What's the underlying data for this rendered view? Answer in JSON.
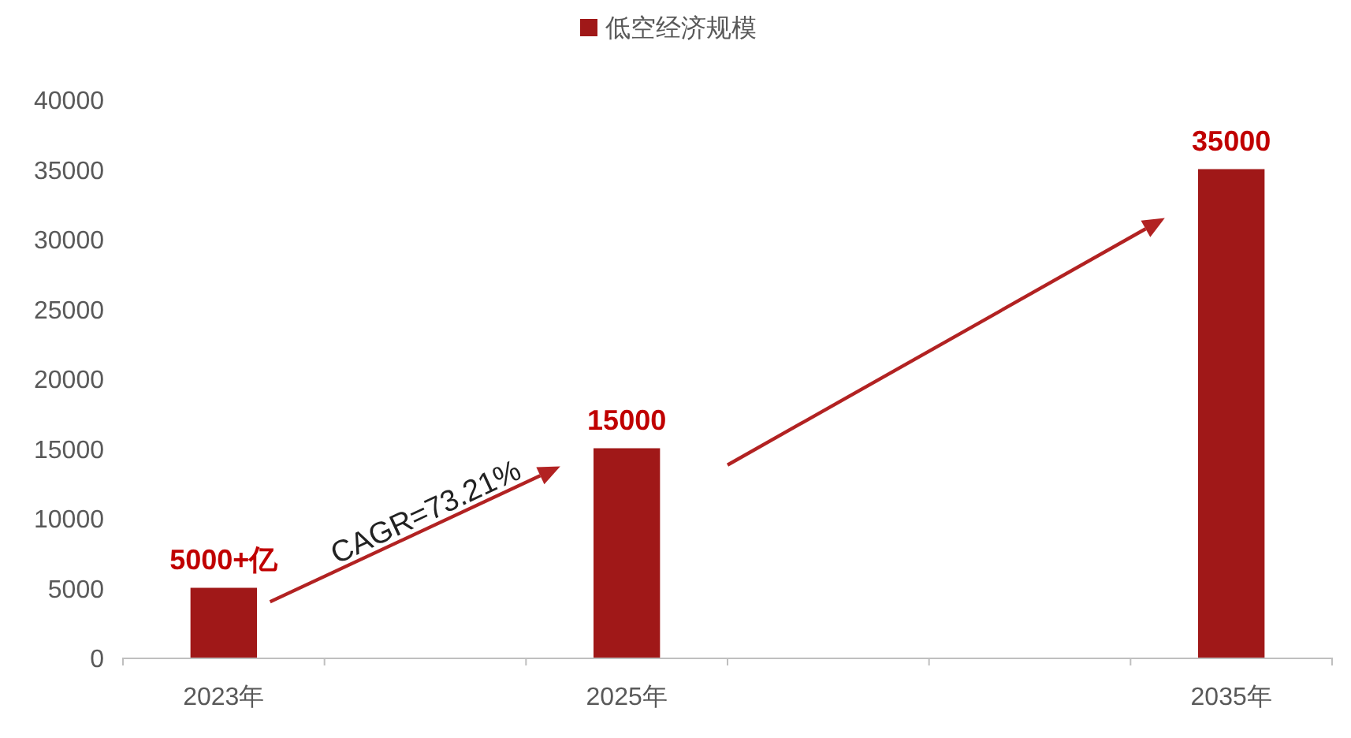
{
  "chart_data": {
    "type": "bar",
    "categories": [
      "2023年",
      null,
      "2025年",
      null,
      null,
      "2035年"
    ],
    "series": [
      {
        "name": "低空经济规模",
        "color": "#a01818",
        "values": [
          5000,
          null,
          15000,
          null,
          null,
          35000
        ],
        "value_labels": [
          "5000+亿",
          null,
          "15000",
          null,
          null,
          "35000"
        ]
      }
    ],
    "ylim": [
      0,
      40000
    ],
    "yticks": [
      0,
      5000,
      10000,
      15000,
      20000,
      25000,
      30000,
      35000,
      40000
    ],
    "annotations": [
      "CAGR=73.21%"
    ],
    "legend": "top",
    "grid": false
  }
}
